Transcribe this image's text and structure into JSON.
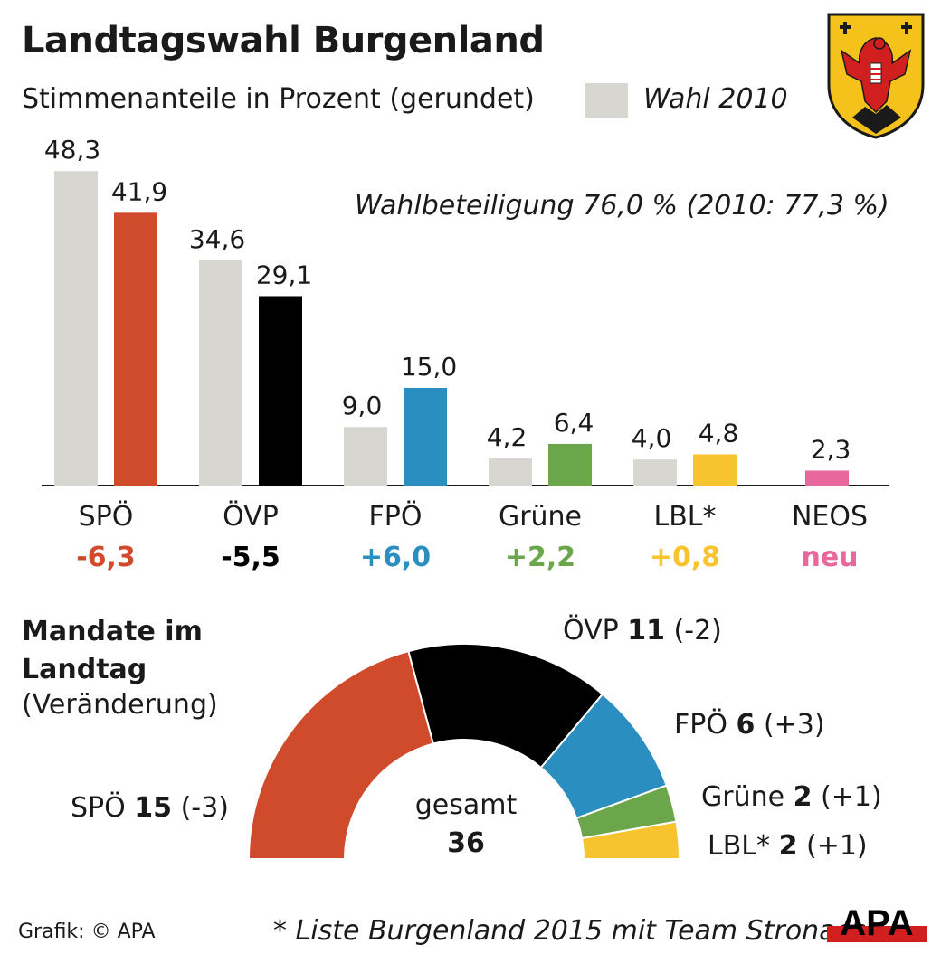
{
  "title": "Landtagswahl Burgenland",
  "subtitle": "Stimmenanteile in Prozent (gerundet)",
  "legend": {
    "previous_label": "Wahl 2010",
    "previous_color": "#d8d6d0"
  },
  "turnout_text": "Wahlbeteiligung 76,0 % (2010: 77,3 %)",
  "crest_icon": "burgenland-coat-of-arms",
  "chart_data": [
    {
      "type": "bar",
      "categories": [
        "SPÖ",
        "ÖVP",
        "FPÖ",
        "Grüne",
        "LBL*",
        "NEOS"
      ],
      "series": [
        {
          "name": "Wahl 2010",
          "values": [
            48.3,
            34.6,
            9.0,
            4.2,
            4.0,
            null
          ],
          "labels": [
            "48,3",
            "34,6",
            "9,0",
            "4,2",
            "4,0",
            ""
          ],
          "color": "#d8d6d0"
        },
        {
          "values": [
            41.9,
            29.1,
            15.0,
            6.4,
            4.8,
            2.3
          ],
          "labels": [
            "41,9",
            "29,1",
            "15,0",
            "6,4",
            "4,8",
            "2,3"
          ],
          "colors": [
            "#cf4b2b",
            "#000000",
            "#2a8fc0",
            "#6ca64b",
            "#f7c32e",
            "#e8679d"
          ]
        }
      ],
      "changes": [
        "-6,3",
        "-5,5",
        "+6,0",
        "+2,2",
        "+0,8",
        "neu"
      ],
      "change_colors": [
        "#cf4b2b",
        "#000000",
        "#2a8fc0",
        "#6ca64b",
        "#f7c32e",
        "#e8679d"
      ],
      "ylim": [
        0,
        50
      ]
    },
    {
      "type": "pie",
      "title": "Mandate im Landtag",
      "subtitle": "(Veränderung)",
      "categories": [
        "SPÖ",
        "ÖVP",
        "FPÖ",
        "Grüne",
        "LBL*"
      ],
      "values": [
        15,
        11,
        6,
        2,
        2
      ],
      "changes": [
        "(-3)",
        "(-2)",
        "(+3)",
        "(+1)",
        "(+1)"
      ],
      "colors": [
        "#cf4b2b",
        "#000000",
        "#2a8fc0",
        "#6ca64b",
        "#f7c32e"
      ],
      "total_label": "gesamt",
      "total": "36"
    }
  ],
  "footer": {
    "credit": "Grafik: © APA",
    "footnote": "* Liste Burgenland 2015 mit Team Stronach",
    "logo_text": "APA"
  }
}
